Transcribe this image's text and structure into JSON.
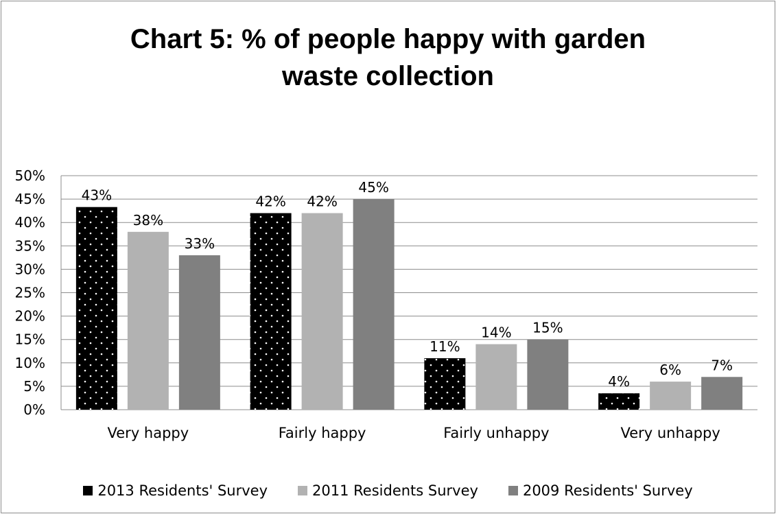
{
  "chart_data": {
    "type": "bar",
    "title_lines": [
      "Chart 5: % of people happy with garden",
      "waste collection"
    ],
    "categories": [
      "Very happy",
      "Fairly happy",
      "Fairly unhappy",
      "Very unhappy"
    ],
    "series": [
      {
        "name": "2013 Residents' Survey",
        "values": [
          43.3,
          42,
          11,
          3.5
        ],
        "labels": [
          "43%",
          "42%",
          "11%",
          "4%"
        ],
        "color": "#000000",
        "pattern": "white-dots"
      },
      {
        "name": "2011 Residents Survey",
        "values": [
          38,
          42,
          14,
          6
        ],
        "labels": [
          "38%",
          "42%",
          "14%",
          "6%"
        ],
        "color": "#b2b2b2"
      },
      {
        "name": "2009 Residents' Survey",
        "values": [
          33,
          45,
          15,
          7
        ],
        "labels": [
          "33%",
          "45%",
          "15%",
          "7%"
        ],
        "color": "#808080"
      }
    ],
    "ylim": [
      0,
      50
    ],
    "yticks": [
      "0%",
      "5%",
      "10%",
      "15%",
      "20%",
      "25%",
      "30%",
      "35%",
      "40%",
      "45%",
      "50%"
    ],
    "grid": true,
    "legend_position": "bottom"
  }
}
